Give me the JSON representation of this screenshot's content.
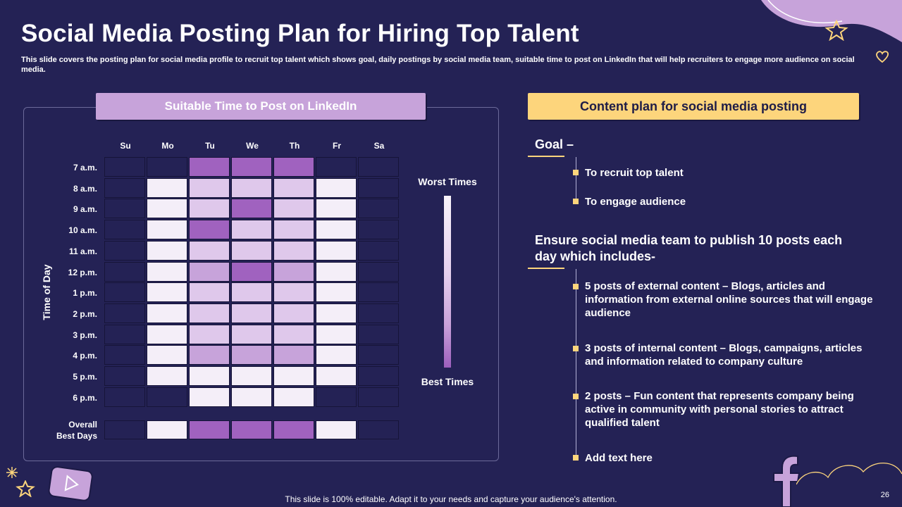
{
  "title": "Social Media Posting Plan for Hiring Top Talent",
  "subtitle": "This slide covers the posting plan for social media profile to recruit top talent which shows goal, daily postings by social media team, suitable time to post on LinkedIn that will help recruiters to engage more audience on social media.",
  "left_banner": "Suitable Time to Post on LinkedIn",
  "heatmap": {
    "days": [
      "Su",
      "Mo",
      "Tu",
      "We",
      "Th",
      "Fr",
      "Sa"
    ],
    "times": [
      "7 a.m.",
      "8 a.m.",
      "9 a.m.",
      "10 a.m.",
      "11 a.m.",
      "12 p.m.",
      "1 p.m.",
      "2 p.m.",
      "3 p.m.",
      "4 p.m.",
      "5 p.m.",
      "6 p.m."
    ],
    "y_axis_label": "Time of Day",
    "overall_label_line1": "Overall",
    "overall_label_line2": "Best Days",
    "intensity_levels_note": "0 = no fill, 1 = worst (lightest), 4 = best (darkest)",
    "values": [
      [
        0,
        0,
        4,
        4,
        4,
        0,
        0
      ],
      [
        0,
        1,
        2,
        2,
        2,
        1,
        0
      ],
      [
        0,
        1,
        2,
        4,
        2,
        1,
        0
      ],
      [
        0,
        1,
        4,
        2,
        2,
        1,
        0
      ],
      [
        0,
        1,
        2,
        2,
        2,
        1,
        0
      ],
      [
        0,
        1,
        3,
        4,
        3,
        1,
        0
      ],
      [
        0,
        1,
        2,
        2,
        2,
        1,
        0
      ],
      [
        0,
        1,
        2,
        2,
        2,
        1,
        0
      ],
      [
        0,
        1,
        2,
        2,
        2,
        1,
        0
      ],
      [
        0,
        1,
        3,
        3,
        3,
        1,
        0
      ],
      [
        0,
        1,
        1,
        1,
        1,
        1,
        0
      ],
      [
        0,
        0,
        1,
        1,
        1,
        0,
        0
      ]
    ],
    "overall": [
      0,
      1,
      4,
      4,
      4,
      1,
      0
    ],
    "colors": [
      "#242255",
      "#f4eef8",
      "#dfc8eb",
      "#c7a3da",
      "#a062bf"
    ],
    "legend_top": "Worst Times",
    "legend_bottom": "Best Times"
  },
  "right_banner": "Content plan for social media posting",
  "goal": {
    "heading": "Goal –",
    "items": [
      "To recruit top talent",
      "To engage audience"
    ]
  },
  "ensure": {
    "heading": "Ensure social media team to publish 10 posts each day which includes-",
    "items": [
      "5 posts of external content – Blogs, articles and information from external online sources that will engage audience",
      "3 posts of internal content – Blogs, campaigns, articles and information related to company culture",
      "2 posts – Fun content that represents company being active in community with personal stories to attract qualified talent",
      "Add text here"
    ]
  },
  "footer": "This slide is 100% editable. Adapt it to your needs and capture your audience's attention.",
  "page_number": "26"
}
